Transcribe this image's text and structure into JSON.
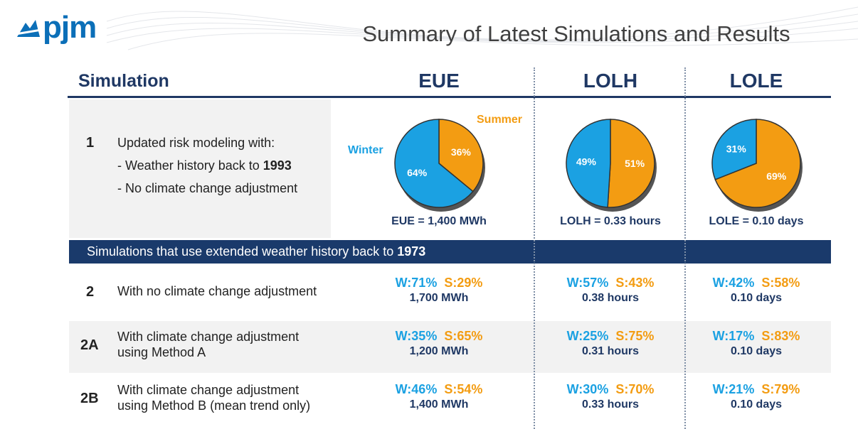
{
  "header": {
    "logo": "pjm",
    "title": "Summary of Latest Simulations and Results"
  },
  "table": {
    "columns": [
      "Simulation",
      "EUE",
      "LOLH",
      "LOLE"
    ],
    "row1": {
      "id": "1",
      "description": [
        "Updated risk modeling with:",
        {
          "text": "- Weather history back to",
          "bold": "1993"
        },
        "- No climate change adjustment"
      ],
      "pie_labels": [
        "Winter",
        "Summer"
      ],
      "colors": [
        "#1ba1e2",
        "#f39c12"
      ],
      "pies": [
        {
          "type": "pie",
          "values": [
            64,
            36
          ],
          "value_labels": [
            "64%",
            "36%"
          ],
          "caption": "EUE = 1,400 MWh"
        },
        {
          "type": "pie",
          "values": [
            49,
            51
          ],
          "value_labels": [
            "49%",
            "51%"
          ],
          "caption": "LOLH = 0.33 hours"
        },
        {
          "type": "pie",
          "values": [
            31,
            69
          ],
          "value_labels": [
            "31%",
            "69%"
          ],
          "caption": "LOLE = 0.10 days"
        }
      ]
    },
    "banner": {
      "text": "Simulations that use extended weather history back to",
      "bold": "1973"
    },
    "rows": [
      {
        "id": "2",
        "description": [
          "With no climate change adjustment"
        ],
        "results": [
          {
            "winter": "W:71%",
            "summer": "S:29%",
            "total": "1,700 MWh"
          },
          {
            "winter": "W:57%",
            "summer": "S:43%",
            "total": "0.38 hours"
          },
          {
            "winter": "W:42%",
            "summer": "S:58%",
            "total": "0.10 days"
          }
        ]
      },
      {
        "id": "2A",
        "description": [
          "With climate change adjustment",
          "using Method A"
        ],
        "results": [
          {
            "winter": "W:35%",
            "summer": "S:65%",
            "total": "1,200 MWh"
          },
          {
            "winter": "W:25%",
            "summer": "S:75%",
            "total": "0.31 hours"
          },
          {
            "winter": "W:17%",
            "summer": "S:83%",
            "total": "0.10 days"
          }
        ]
      },
      {
        "id": "2B",
        "description": [
          "With climate change adjustment",
          "using Method B (mean trend only)"
        ],
        "results": [
          {
            "winter": "W:46%",
            "summer": "S:54%",
            "total": "1,400 MWh"
          },
          {
            "winter": "W:30%",
            "summer": "S:70%",
            "total": "0.33 hours"
          },
          {
            "winter": "W:21%",
            "summer": "S:79%",
            "total": "0.10 days"
          }
        ]
      }
    ]
  }
}
